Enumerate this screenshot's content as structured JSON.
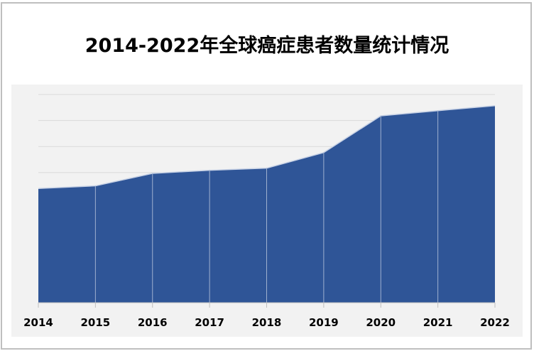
{
  "title": "2014-2022年全球癌症患者数量统计情况",
  "colors": {
    "area_fill": "#2f5597",
    "area_line": "#c9d3e6",
    "plot_bg": "#f2f2f2",
    "gridline": "#d9d9d9",
    "frame_border": "#bfbfbf"
  },
  "chart_data": {
    "type": "area",
    "title": "2014-2022年全球癌症患者数量统计情况",
    "xlabel": "",
    "ylabel": "",
    "categories": [
      "2014",
      "2015",
      "2016",
      "2017",
      "2018",
      "2019",
      "2020",
      "2021",
      "2022"
    ],
    "series": [
      {
        "name": "全球癌症患者数量",
        "values": [
          4.39,
          4.49,
          4.97,
          5.09,
          5.17,
          5.77,
          7.18,
          7.38,
          7.57
        ]
      }
    ],
    "ylim": [
      0,
      8
    ],
    "y_gridlines": 8,
    "y_tick_labels_visible": false,
    "grid": true,
    "legend": "none",
    "note": "values estimated in gridline units; y-axis labels not shown"
  }
}
